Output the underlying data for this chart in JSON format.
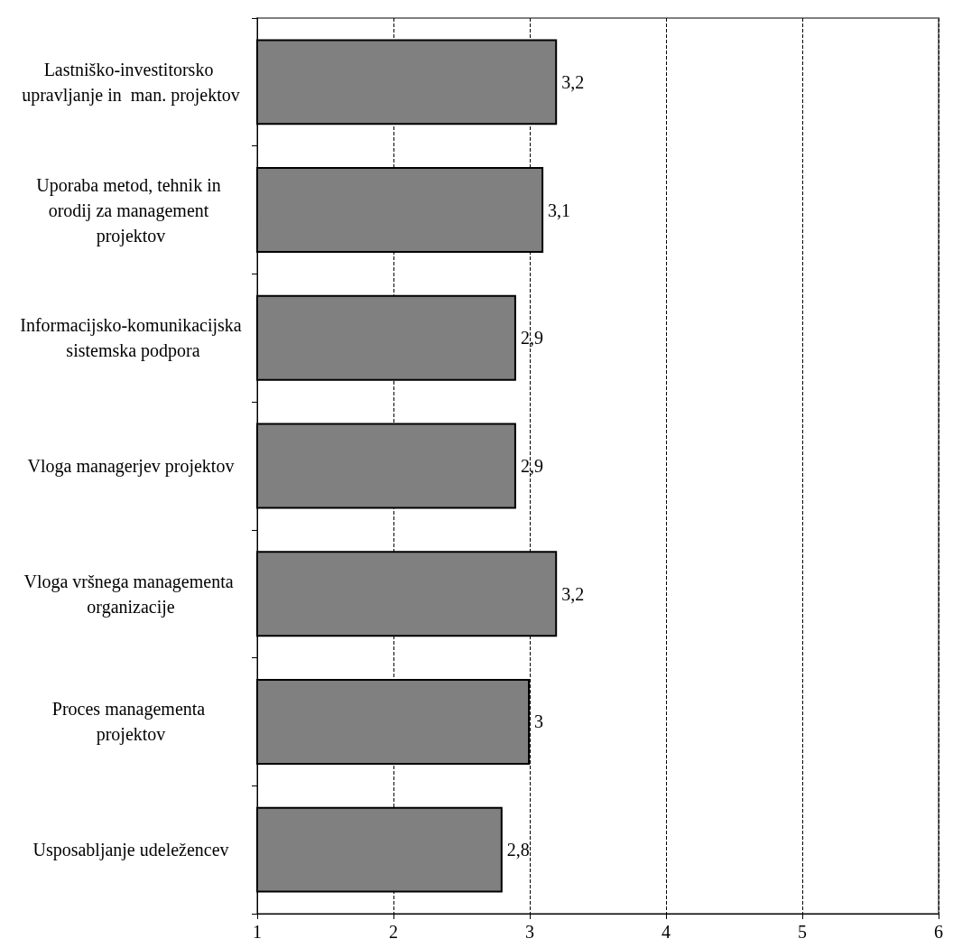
{
  "chart_data": {
    "type": "bar",
    "orientation": "horizontal",
    "categories": [
      "Lastniško-investitorsko upravljanje in  man. projektov",
      "Uporaba metod, tehnik in orodij za management projektov",
      "Informacijsko-komunikacijska sistemska podpora",
      "Vloga managerjev projektov",
      "Vloga vršnega managementa organizacije",
      "Proces managementa projektov",
      "Usposabljanje udeležencev"
    ],
    "values": [
      3.2,
      3.1,
      2.9,
      2.9,
      3.2,
      3.0,
      2.8
    ],
    "value_labels": [
      "3,2",
      "3,1",
      "2,9",
      "2,9",
      "3,2",
      "3",
      "2,8"
    ],
    "color": "#808080",
    "xlim": [
      1,
      6
    ],
    "xticks": [
      1,
      2,
      3,
      4,
      5,
      6
    ],
    "grid": "x"
  }
}
